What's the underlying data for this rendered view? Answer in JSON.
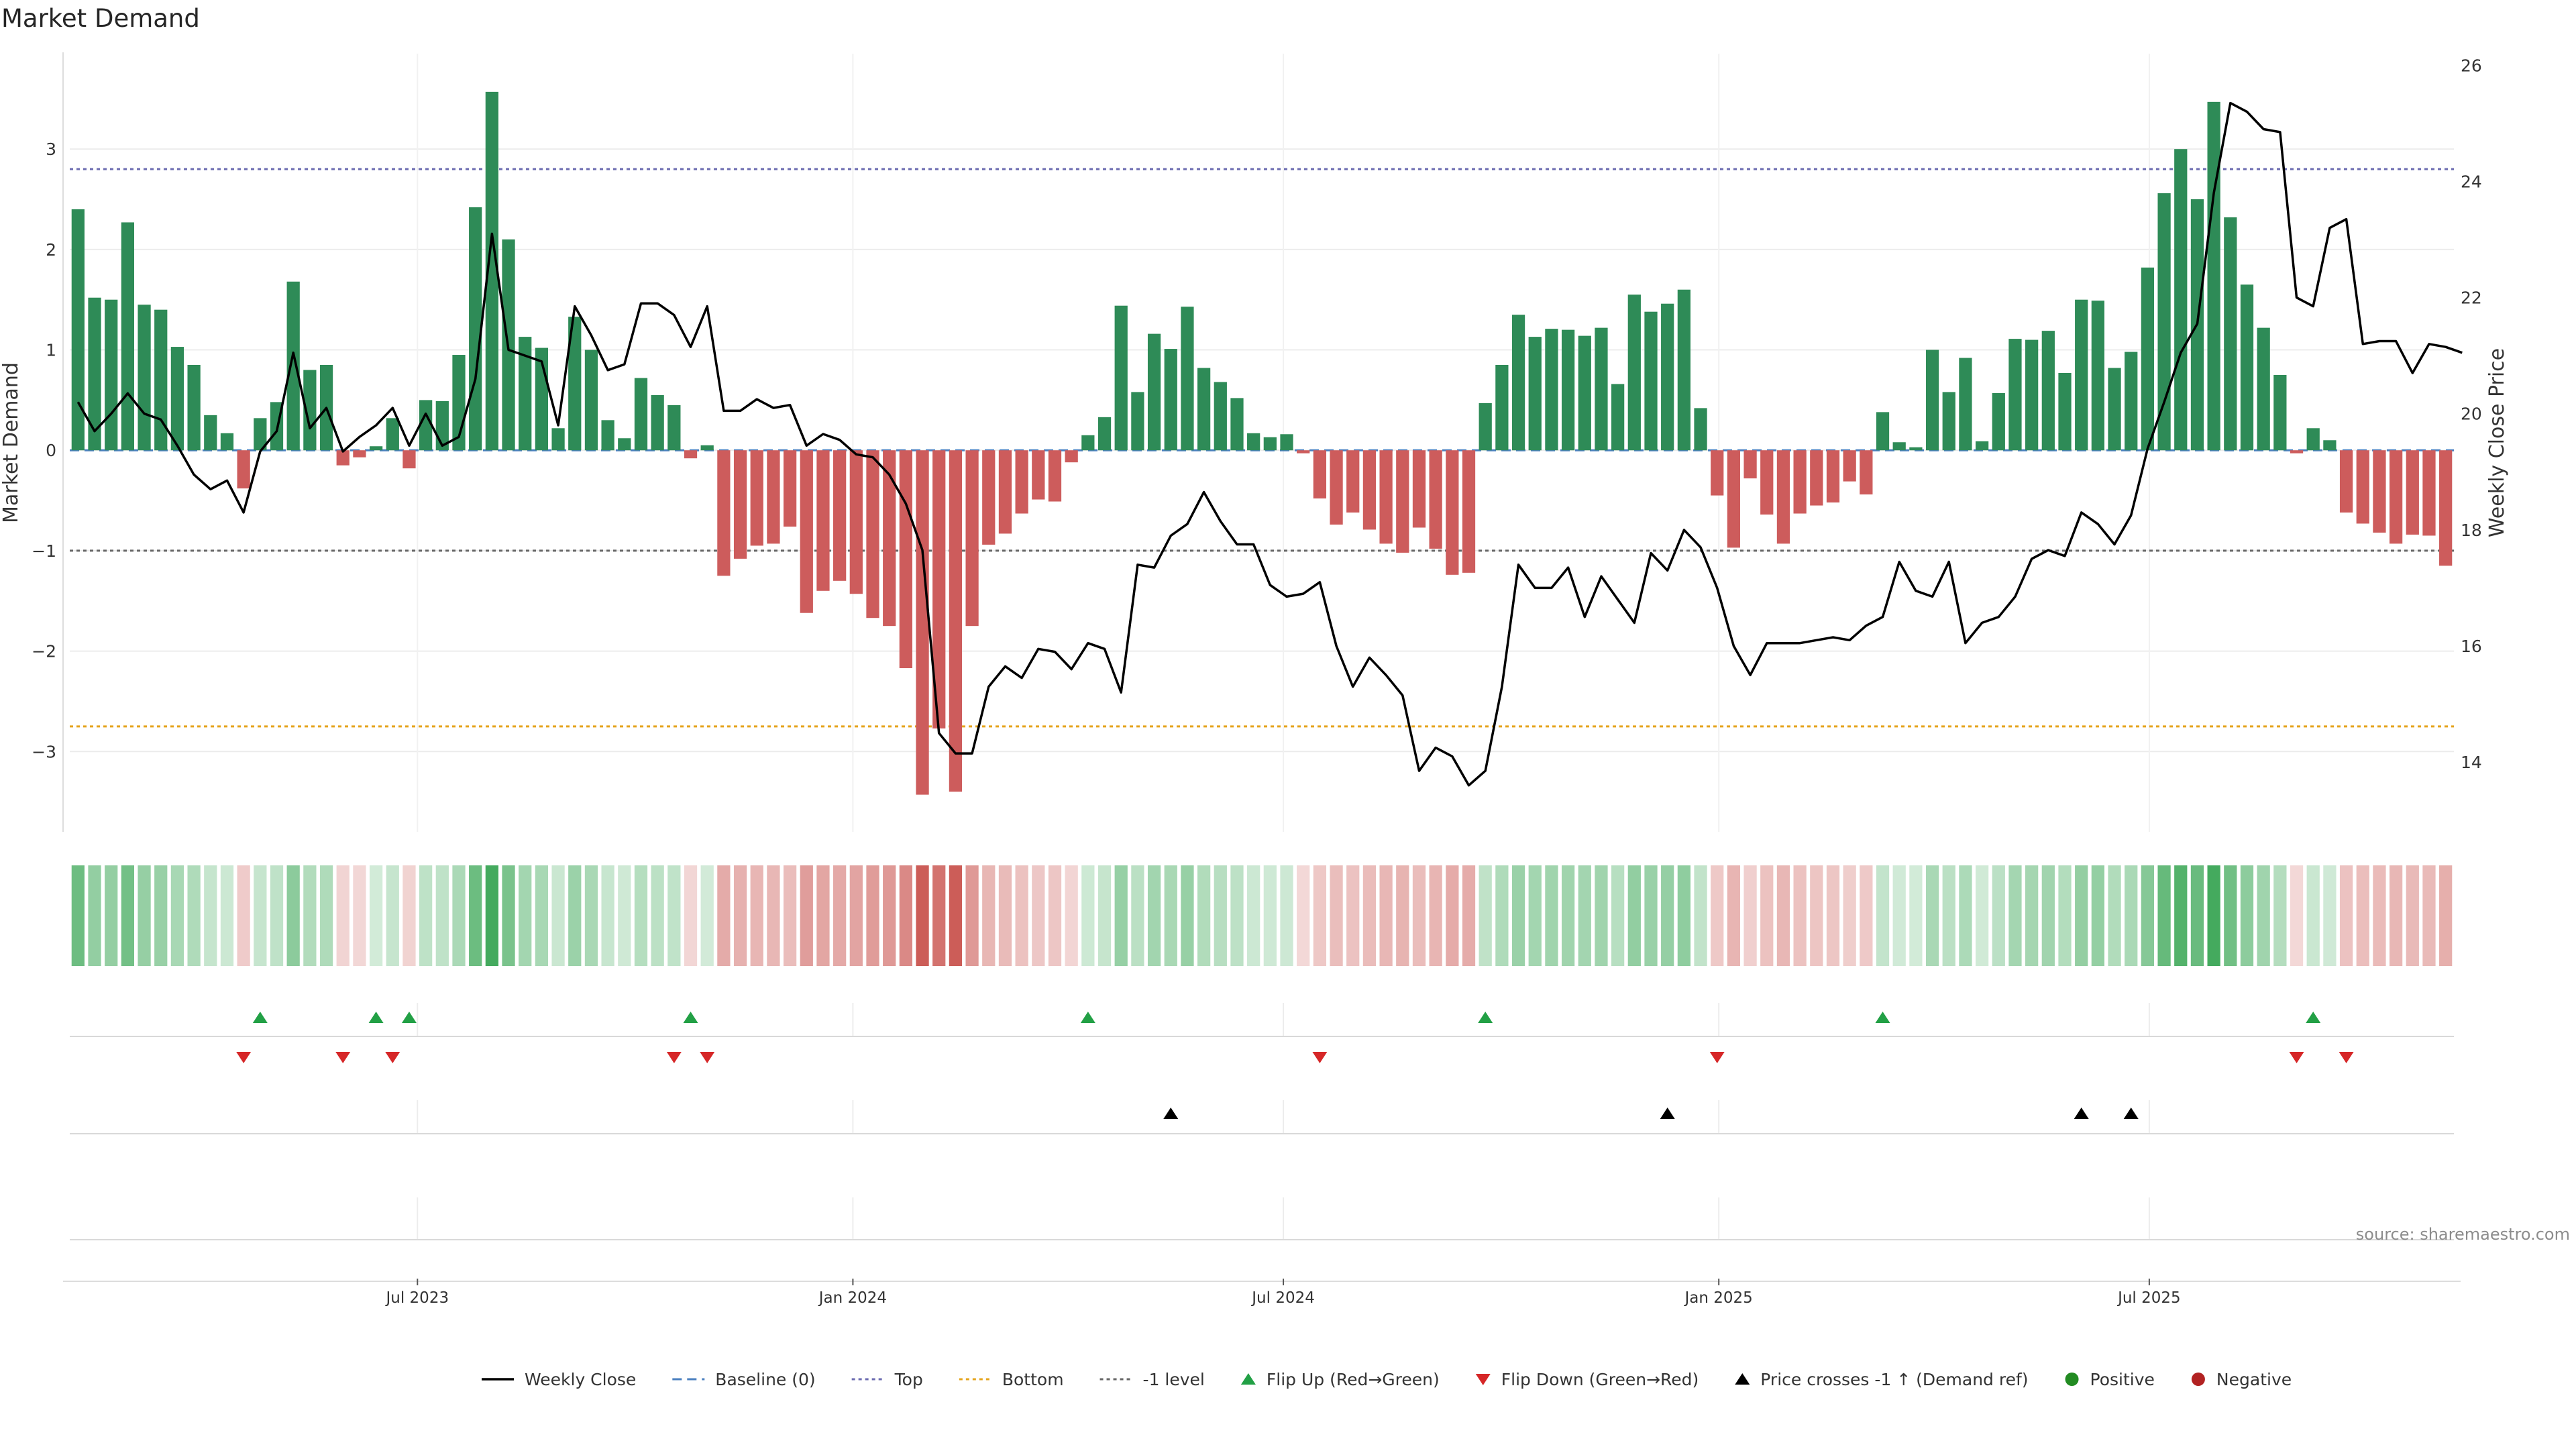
{
  "chart_data": {
    "type": "bar",
    "title": "Market Demand",
    "ylabel": "Market Demand",
    "y2label": "Weekly Close Price",
    "ylim": [
      -3.8,
      3.95
    ],
    "y2lim": [
      12.8,
      26.2
    ],
    "yticks": [
      "3",
      "2",
      "1",
      "0",
      "−1",
      "−2",
      "−3"
    ],
    "yticks_values": [
      3,
      2,
      1,
      0,
      -1,
      -2,
      -3
    ],
    "y2ticks": [
      "26",
      "24",
      "22",
      "20",
      "18",
      "16",
      "14"
    ],
    "y2ticks_values": [
      26,
      24,
      22,
      20,
      18,
      16,
      14
    ],
    "reference_lines": {
      "top": 2.8,
      "bottom": -2.75,
      "minus_one": -1.0,
      "baseline": 0
    },
    "xticks": [
      {
        "label": "Jul 2023",
        "index": 21
      },
      {
        "label": "Jan 2024",
        "index": 47.3
      },
      {
        "label": "Jul 2024",
        "index": 73.3
      },
      {
        "label": "Jan 2025",
        "index": 99.6
      },
      {
        "label": "Jul 2025",
        "index": 125.6
      }
    ],
    "demand": [
      2.4,
      1.52,
      1.5,
      2.27,
      1.45,
      1.4,
      1.03,
      0.85,
      0.35,
      0.17,
      -0.38,
      0.32,
      0.48,
      1.68,
      0.8,
      0.85,
      -0.15,
      -0.07,
      0.04,
      0.32,
      -0.18,
      0.5,
      0.49,
      0.95,
      2.42,
      3.57,
      2.1,
      1.13,
      1.02,
      0.22,
      1.33,
      1.0,
      0.3,
      0.12,
      0.72,
      0.55,
      0.45,
      -0.08,
      0.05,
      -1.25,
      -1.08,
      -0.95,
      -0.93,
      -0.76,
      -1.62,
      -1.4,
      -1.3,
      -1.43,
      -1.67,
      -1.75,
      -2.17,
      -3.43,
      -2.77,
      -3.4,
      -1.75,
      -0.94,
      -0.83,
      -0.63,
      -0.49,
      -0.51,
      -0.12,
      0.15,
      0.33,
      1.44,
      0.58,
      1.16,
      1.01,
      1.43,
      0.82,
      0.68,
      0.52,
      0.17,
      0.13,
      0.16,
      -0.03,
      -0.48,
      -0.74,
      -0.62,
      -0.79,
      -0.93,
      -1.02,
      -0.77,
      -0.98,
      -1.24,
      -1.22,
      0.47,
      0.85,
      1.35,
      1.13,
      1.21,
      1.2,
      1.14,
      1.22,
      0.66,
      1.55,
      1.38,
      1.46,
      1.6,
      0.42,
      -0.45,
      -0.97,
      -0.28,
      -0.64,
      -0.93,
      -0.63,
      -0.55,
      -0.52,
      -0.31,
      -0.44,
      0.38,
      0.08,
      0.03,
      1.0,
      0.58,
      0.92,
      0.09,
      0.57,
      1.11,
      1.1,
      1.19,
      0.77,
      1.5,
      1.49,
      0.82,
      0.98,
      1.82,
      2.56,
      3.0,
      2.5,
      3.47,
      2.32,
      1.65,
      1.22,
      0.75,
      -0.03,
      0.22,
      0.1,
      -0.62,
      -0.73,
      -0.82,
      -0.93,
      -0.84,
      -0.85,
      -1.15
    ],
    "weekly_close": [
      20.2,
      19.7,
      20.0,
      20.35,
      20.0,
      19.9,
      19.45,
      18.95,
      18.7,
      18.85,
      18.3,
      19.35,
      19.7,
      21.05,
      19.75,
      20.1,
      19.35,
      19.6,
      19.8,
      20.1,
      19.45,
      20.0,
      19.45,
      19.6,
      20.6,
      23.1,
      21.1,
      21.0,
      20.9,
      19.8,
      21.85,
      21.35,
      20.75,
      20.85,
      21.9,
      21.9,
      21.7,
      21.15,
      21.85,
      20.05,
      20.05,
      20.25,
      20.1,
      20.15,
      19.45,
      19.65,
      19.55,
      19.3,
      19.25,
      18.95,
      18.45,
      17.65,
      14.5,
      14.15,
      14.15,
      15.3,
      15.65,
      15.45,
      15.95,
      15.9,
      15.6,
      16.05,
      15.95,
      15.2,
      17.4,
      17.35,
      17.9,
      18.1,
      18.65,
      18.15,
      17.75,
      17.75,
      17.05,
      16.85,
      16.9,
      17.1,
      16.0,
      15.3,
      15.8,
      15.5,
      15.15,
      13.85,
      14.25,
      14.1,
      13.6,
      13.85,
      15.3,
      17.4,
      17.0,
      17.0,
      17.35,
      16.5,
      17.2,
      16.8,
      16.4,
      17.6,
      17.3,
      18.0,
      17.7,
      17.0,
      16.0,
      15.5,
      16.05,
      16.05,
      16.05,
      16.1,
      16.15,
      16.1,
      16.35,
      16.5,
      17.45,
      16.95,
      16.85,
      17.45,
      16.05,
      16.4,
      16.5,
      16.85,
      17.5,
      17.65,
      17.55,
      18.3,
      18.1,
      17.75,
      18.25,
      19.4,
      20.2,
      21.05,
      21.55,
      23.8,
      25.35,
      25.2,
      24.9,
      24.85,
      22.0,
      21.85,
      23.2,
      23.35,
      21.2,
      21.25,
      21.25,
      20.7,
      21.2,
      21.15,
      21.05
    ],
    "flip_up": [
      11,
      18,
      20,
      37,
      61,
      85,
      109,
      135
    ],
    "flip_down": [
      10,
      16,
      19,
      36,
      38,
      75,
      99,
      134,
      137
    ],
    "price_cross_minus1_up": [
      66,
      96,
      121,
      124
    ],
    "legend": [
      {
        "label": "Weekly Close",
        "kind": "line"
      },
      {
        "label": "Baseline (0)",
        "kind": "dashed-blue"
      },
      {
        "label": "Top",
        "kind": "dotted-purple"
      },
      {
        "label": "Bottom",
        "kind": "dotted-orange"
      },
      {
        "label": "-1 level",
        "kind": "dotted-gray"
      },
      {
        "label": "Flip Up (Red→Green)",
        "kind": "triangle-up-green"
      },
      {
        "label": "Flip Down (Green→Red)",
        "kind": "triangle-down-red"
      },
      {
        "label": "Price crosses -1 ↑ (Demand ref)",
        "kind": "triangle-up-black"
      },
      {
        "label": "Positive",
        "kind": "dot-green"
      },
      {
        "label": "Negative",
        "kind": "dot-red"
      }
    ],
    "source": "source: sharemaestro.com"
  },
  "colors": {
    "positive": "#2e8b57",
    "negative": "#cd5c5c",
    "price_line": "#000000",
    "baseline": "#4a7fbf",
    "top_line": "#6b6bb0",
    "bottom_line": "#e5a41c",
    "minus_one_line": "#666666",
    "flip_up": "#22a045",
    "flip_down": "#d62728",
    "cross": "#000000",
    "dot_positive": "#228b22",
    "dot_negative": "#b22222"
  }
}
